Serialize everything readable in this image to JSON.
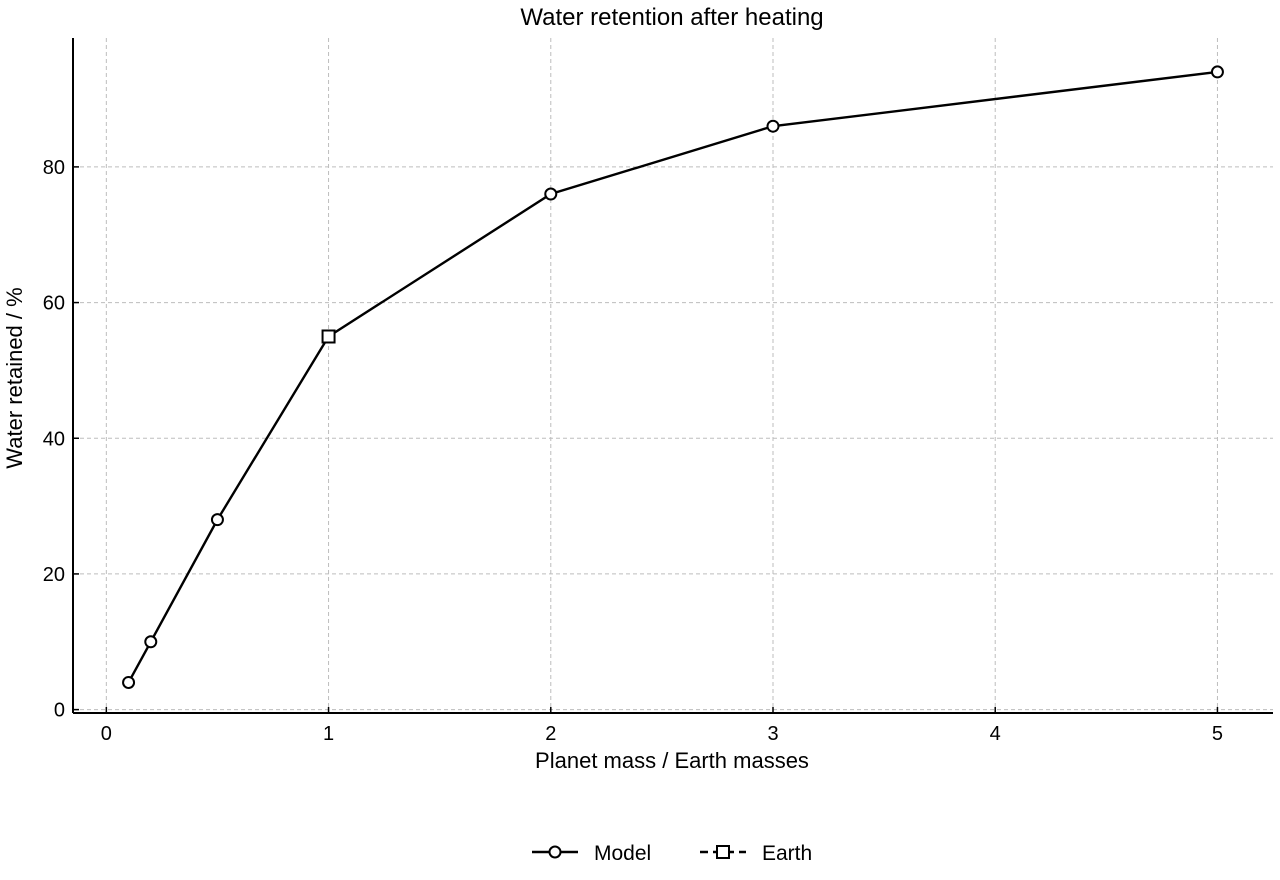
{
  "chart_data": {
    "type": "line",
    "title": "Water retention after heating",
    "xlabel": "Planet mass / Earth masses",
    "ylabel": "Water retained / %",
    "xlim": [
      -0.15,
      5.25
    ],
    "ylim": [
      -0.5,
      99
    ],
    "xticks": [
      0,
      1,
      2,
      3,
      4,
      5
    ],
    "yticks": [
      0,
      20,
      40,
      60,
      80
    ],
    "grid": true,
    "legend_position": "bottom-center",
    "series": [
      {
        "name": "Model",
        "marker": "circle",
        "line": "solid",
        "x": [
          0.1,
          0.2,
          0.5,
          1,
          2,
          3,
          5
        ],
        "y": [
          4,
          10,
          28,
          55,
          76,
          86,
          94
        ]
      },
      {
        "name": "Earth",
        "marker": "square",
        "line": "dashed",
        "x": [
          1
        ],
        "y": [
          55
        ]
      }
    ]
  }
}
